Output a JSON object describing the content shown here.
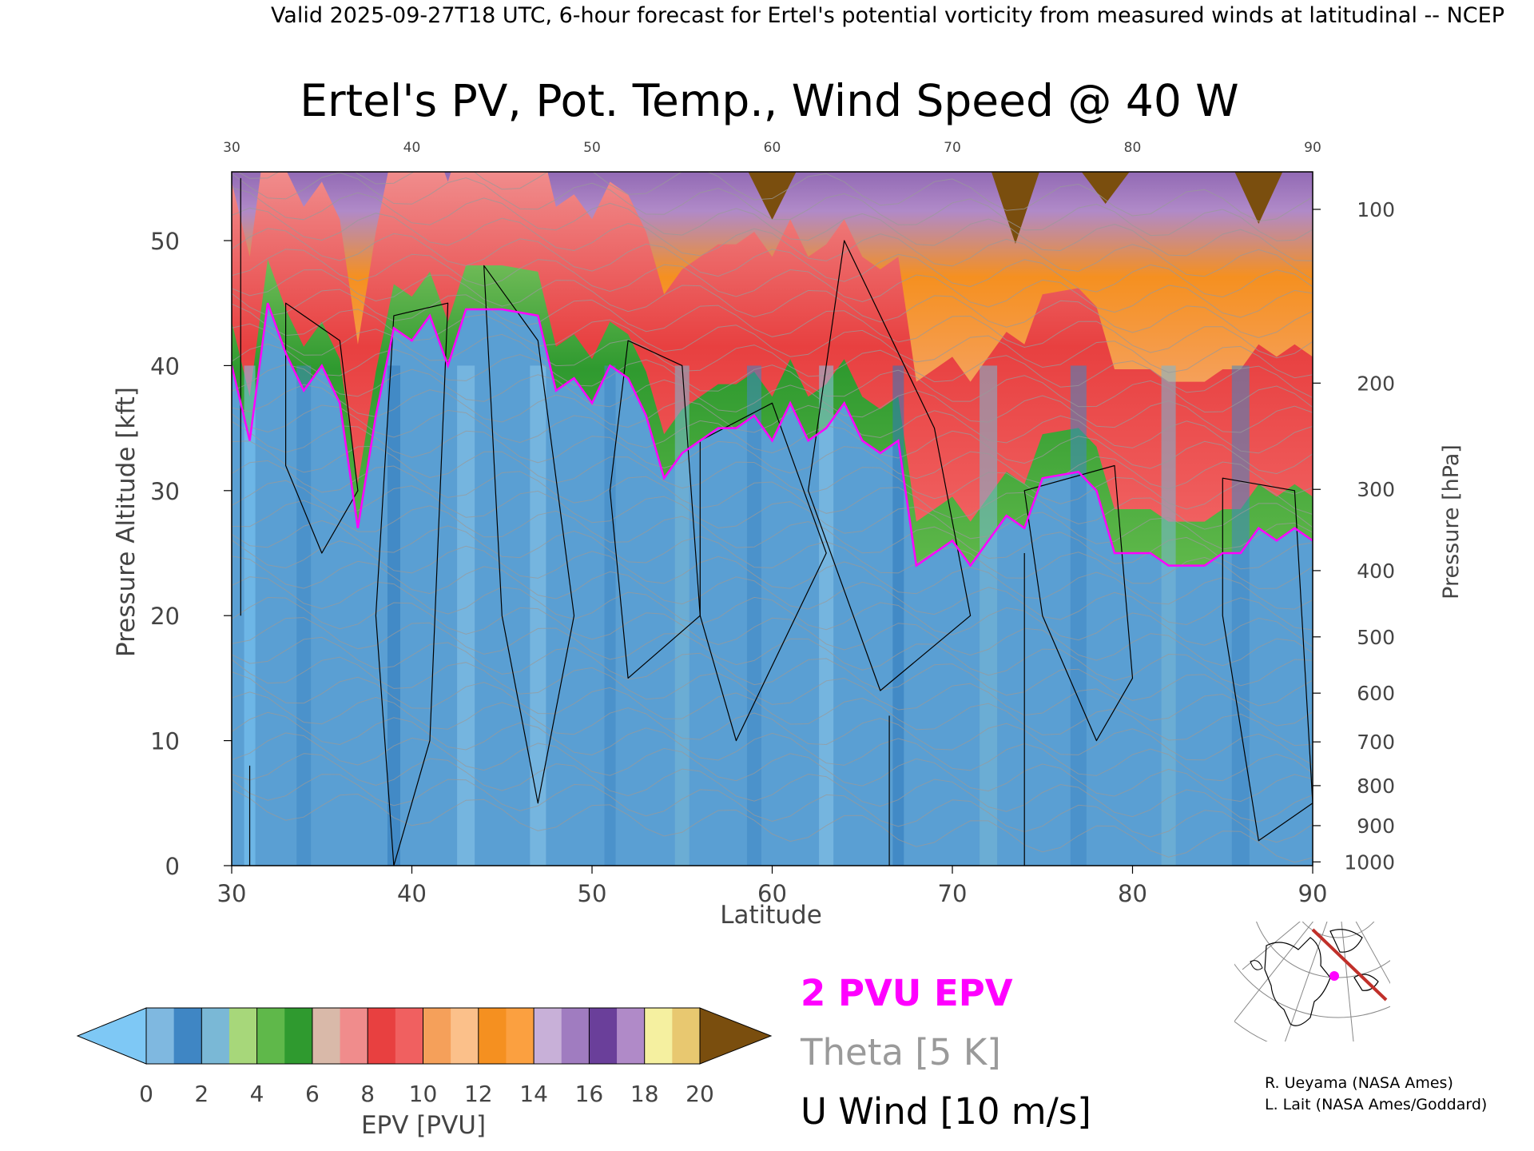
{
  "header": {
    "banner": "Valid 2025-09-27T18 UTC, 6-hour forecast for Ertel's potential vorticity from measured winds at latitudinal -- NCEP"
  },
  "chart_data": {
    "type": "heatmap",
    "title": "Ertel's PV, Pot. Temp., Wind Speed @ 40 W",
    "xlabel": "Latitude",
    "ylabel": "Pressure Altitude [kft]",
    "y2label": "Pressure [hPa]",
    "xlim": [
      30,
      90
    ],
    "ylim": [
      0,
      55.5
    ],
    "x_ticks": [
      "30",
      "40",
      "50",
      "60",
      "70",
      "80",
      "90"
    ],
    "y_ticks": [
      "0",
      "10",
      "20",
      "30",
      "40",
      "50"
    ],
    "pressure_ticks": [
      {
        "label": "100",
        "kft": 52.5
      },
      {
        "label": "200",
        "kft": 38.6
      },
      {
        "label": "300",
        "kft": 30.1
      },
      {
        "label": "400",
        "kft": 23.6
      },
      {
        "label": "500",
        "kft": 18.3
      },
      {
        "label": "600",
        "kft": 13.8
      },
      {
        "label": "700",
        "kft": 9.9
      },
      {
        "label": "800",
        "kft": 6.4
      },
      {
        "label": "900",
        "kft": 3.2
      },
      {
        "label": "1000",
        "kft": 0.3
      }
    ],
    "tropopause_2pvu_kft": [
      {
        "lat": 30,
        "kft": 40
      },
      {
        "lat": 31,
        "kft": 34
      },
      {
        "lat": 32,
        "kft": 45
      },
      {
        "lat": 33,
        "kft": 41
      },
      {
        "lat": 34,
        "kft": 38
      },
      {
        "lat": 35,
        "kft": 40
      },
      {
        "lat": 36,
        "kft": 37
      },
      {
        "lat": 37,
        "kft": 27
      },
      {
        "lat": 38,
        "kft": 36
      },
      {
        "lat": 39,
        "kft": 43
      },
      {
        "lat": 40,
        "kft": 42
      },
      {
        "lat": 41,
        "kft": 44
      },
      {
        "lat": 42,
        "kft": 40
      },
      {
        "lat": 43,
        "kft": 44.5
      },
      {
        "lat": 45,
        "kft": 44.5
      },
      {
        "lat": 47,
        "kft": 44
      },
      {
        "lat": 48,
        "kft": 38
      },
      {
        "lat": 49,
        "kft": 39
      },
      {
        "lat": 50,
        "kft": 37
      },
      {
        "lat": 51,
        "kft": 40
      },
      {
        "lat": 52,
        "kft": 39
      },
      {
        "lat": 53,
        "kft": 36
      },
      {
        "lat": 54,
        "kft": 31
      },
      {
        "lat": 55,
        "kft": 33
      },
      {
        "lat": 56,
        "kft": 34
      },
      {
        "lat": 57,
        "kft": 35
      },
      {
        "lat": 58,
        "kft": 35
      },
      {
        "lat": 59,
        "kft": 36
      },
      {
        "lat": 60,
        "kft": 34
      },
      {
        "lat": 61,
        "kft": 37
      },
      {
        "lat": 62,
        "kft": 34
      },
      {
        "lat": 63,
        "kft": 35
      },
      {
        "lat": 64,
        "kft": 37
      },
      {
        "lat": 65,
        "kft": 34
      },
      {
        "lat": 66,
        "kft": 33
      },
      {
        "lat": 67,
        "kft": 34
      },
      {
        "lat": 68,
        "kft": 24
      },
      {
        "lat": 69,
        "kft": 25
      },
      {
        "lat": 70,
        "kft": 26
      },
      {
        "lat": 71,
        "kft": 24
      },
      {
        "lat": 72,
        "kft": 26
      },
      {
        "lat": 73,
        "kft": 28
      },
      {
        "lat": 74,
        "kft": 27
      },
      {
        "lat": 75,
        "kft": 31
      },
      {
        "lat": 77,
        "kft": 31.5
      },
      {
        "lat": 78,
        "kft": 30
      },
      {
        "lat": 79,
        "kft": 25
      },
      {
        "lat": 81,
        "kft": 25
      },
      {
        "lat": 82,
        "kft": 24
      },
      {
        "lat": 84,
        "kft": 24
      },
      {
        "lat": 85,
        "kft": 25
      },
      {
        "lat": 86,
        "kft": 25
      },
      {
        "lat": 87,
        "kft": 27
      },
      {
        "lat": 88,
        "kft": 26
      },
      {
        "lat": 89,
        "kft": 27
      },
      {
        "lat": 90,
        "kft": 26
      }
    ],
    "colorbar": {
      "label": "EPV [PVU]",
      "ticks": [
        "0",
        "2",
        "4",
        "6",
        "8",
        "10",
        "12",
        "14",
        "16",
        "18",
        "20"
      ],
      "under_color": "#7ec8f5",
      "over_color": "#7a4e0e",
      "bins": [
        {
          "from": 0,
          "to": 1,
          "color": "#7fb8e0"
        },
        {
          "from": 1,
          "to": 2,
          "color": "#3f86c4"
        },
        {
          "from": 2,
          "to": 3,
          "color": "#7ab8d6"
        },
        {
          "from": 3,
          "to": 4,
          "color": "#a7d77a"
        },
        {
          "from": 4,
          "to": 5,
          "color": "#5fb84a"
        },
        {
          "from": 5,
          "to": 6,
          "color": "#2f9a2f"
        },
        {
          "from": 6,
          "to": 7,
          "color": "#d9b9a9"
        },
        {
          "from": 7,
          "to": 8,
          "color": "#f08c8c"
        },
        {
          "from": 8,
          "to": 9,
          "color": "#e84040"
        },
        {
          "from": 9,
          "to": 10,
          "color": "#f06060"
        },
        {
          "from": 10,
          "to": 11,
          "color": "#f5a05a"
        },
        {
          "from": 11,
          "to": 12,
          "color": "#fbc08a"
        },
        {
          "from": 12,
          "to": 13,
          "color": "#f59020"
        },
        {
          "from": 13,
          "to": 14,
          "color": "#fba040"
        },
        {
          "from": 14,
          "to": 15,
          "color": "#c8b0d8"
        },
        {
          "from": 15,
          "to": 16,
          "color": "#a07cc0"
        },
        {
          "from": 16,
          "to": 17,
          "color": "#6a3f9a"
        },
        {
          "from": 17,
          "to": 18,
          "color": "#b08ac8"
        },
        {
          "from": 18,
          "to": 19,
          "color": "#f5f0a0"
        },
        {
          "from": 19,
          "to": 20,
          "color": "#e8c870"
        }
      ]
    },
    "legend": {
      "pvu": "2 PVU EPV",
      "theta": "Theta [5 K]",
      "wind": "U Wind [10 m/s]",
      "pvu_color": "#ff00ff",
      "theta_color": "#9a9a9a",
      "wind_color": "#000000"
    },
    "credits": [
      "R. Ueyama (NASA Ames)",
      "L. Lait (NASA Ames/Goddard)"
    ]
  }
}
